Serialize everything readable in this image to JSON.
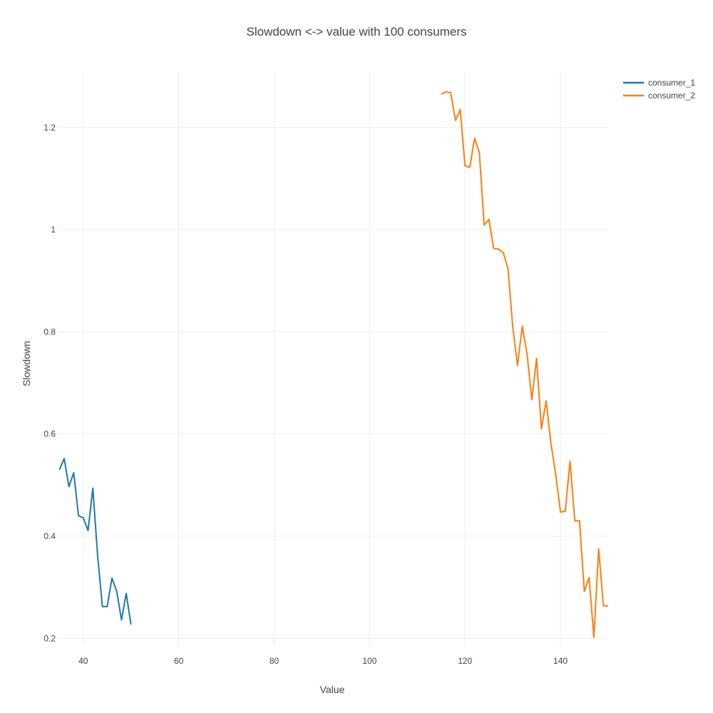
{
  "chart_data": {
    "type": "line",
    "title": "Slowdown <-> value with 100 consumers",
    "xlabel": "Value",
    "ylabel": "Slowdown",
    "xlim": [
      34.5,
      150
    ],
    "ylim": [
      0.185,
      1.31
    ],
    "xticks": [
      40,
      60,
      80,
      100,
      120,
      140
    ],
    "yticks": [
      0.2,
      0.4,
      0.6,
      0.8,
      1,
      1.2
    ],
    "xtick_labels": [
      "40",
      "60",
      "80",
      "100",
      "120",
      "140"
    ],
    "ytick_labels": [
      "0.2",
      "0.4",
      "0.6",
      "0.8",
      "1",
      "1.2"
    ],
    "grid": true,
    "legend_position": "top-right",
    "series": [
      {
        "name": "consumer_1",
        "color": "#1f77b4",
        "x": [
          35,
          36,
          37,
          38,
          39,
          40,
          41,
          42,
          43,
          44,
          45,
          46,
          47,
          48,
          49,
          50
        ],
        "y": [
          0.53,
          0.552,
          0.497,
          0.524,
          0.44,
          0.436,
          0.411,
          0.494,
          0.362,
          0.262,
          0.262,
          0.318,
          0.292,
          0.236,
          0.288,
          0.227
        ]
      },
      {
        "name": "consumer_2",
        "color": "#ff7f0e",
        "x": [
          115,
          116,
          117,
          118,
          119,
          120,
          121,
          122,
          123,
          124,
          125,
          126,
          127,
          128,
          129,
          130,
          131,
          132,
          133,
          134,
          135,
          136,
          137,
          138,
          139,
          140,
          141,
          142,
          143,
          144,
          145,
          146,
          147,
          148,
          149,
          150
        ],
        "y": [
          1.265,
          1.27,
          1.268,
          1.214,
          1.235,
          1.125,
          1.122,
          1.179,
          1.151,
          1.009,
          1.02,
          0.963,
          0.962,
          0.955,
          0.924,
          0.81,
          0.734,
          0.811,
          0.757,
          0.667,
          0.748,
          0.61,
          0.665,
          0.582,
          0.521,
          0.447,
          0.449,
          0.547,
          0.43,
          0.43,
          0.292,
          0.319,
          0.202,
          0.375,
          0.264,
          0.263
        ]
      }
    ]
  }
}
